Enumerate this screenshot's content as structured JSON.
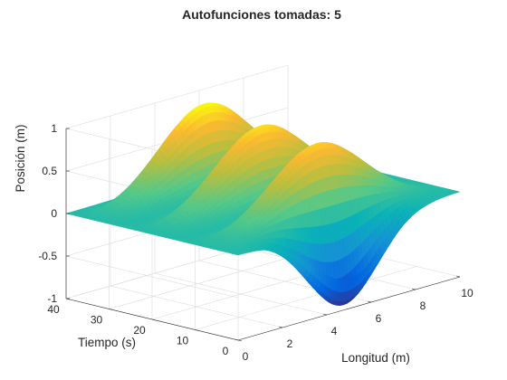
{
  "chart_data": {
    "type": "surface",
    "title": "Autofunciones tomadas: 5",
    "xlabel": "Longitud (m)",
    "ylabel": "Tiempo (s)",
    "zlabel": "Posición (m)",
    "xlim": [
      0,
      10
    ],
    "ylim": [
      0,
      40
    ],
    "zlim": [
      -1,
      1
    ],
    "xticks": [
      "0",
      "2",
      "4",
      "6",
      "8",
      "10"
    ],
    "yticks": [
      "0",
      "10",
      "20",
      "30",
      "40"
    ],
    "zticks": [
      "-1",
      "-0.5",
      "0",
      "0.5",
      "1"
    ],
    "grid": true,
    "colormap": "parula",
    "surface": {
      "x_range": [
        0,
        10
      ],
      "t_range": [
        0,
        40
      ],
      "description": "Solución de onda truncada a 5 autofunciones: pulso que viaja y se refleja",
      "ridges": [
        {
          "t_center": 33.5,
          "x_center": 5.0,
          "height": 1.0
        },
        {
          "t_center": 20.5,
          "x_center": 5.0,
          "height": 0.9
        },
        {
          "t_center": 7.5,
          "x_center": 5.0,
          "height": 0.85
        }
      ],
      "trough": {
        "t_center": 1.5,
        "x_center": 5.0,
        "depth": -1.0
      }
    }
  }
}
